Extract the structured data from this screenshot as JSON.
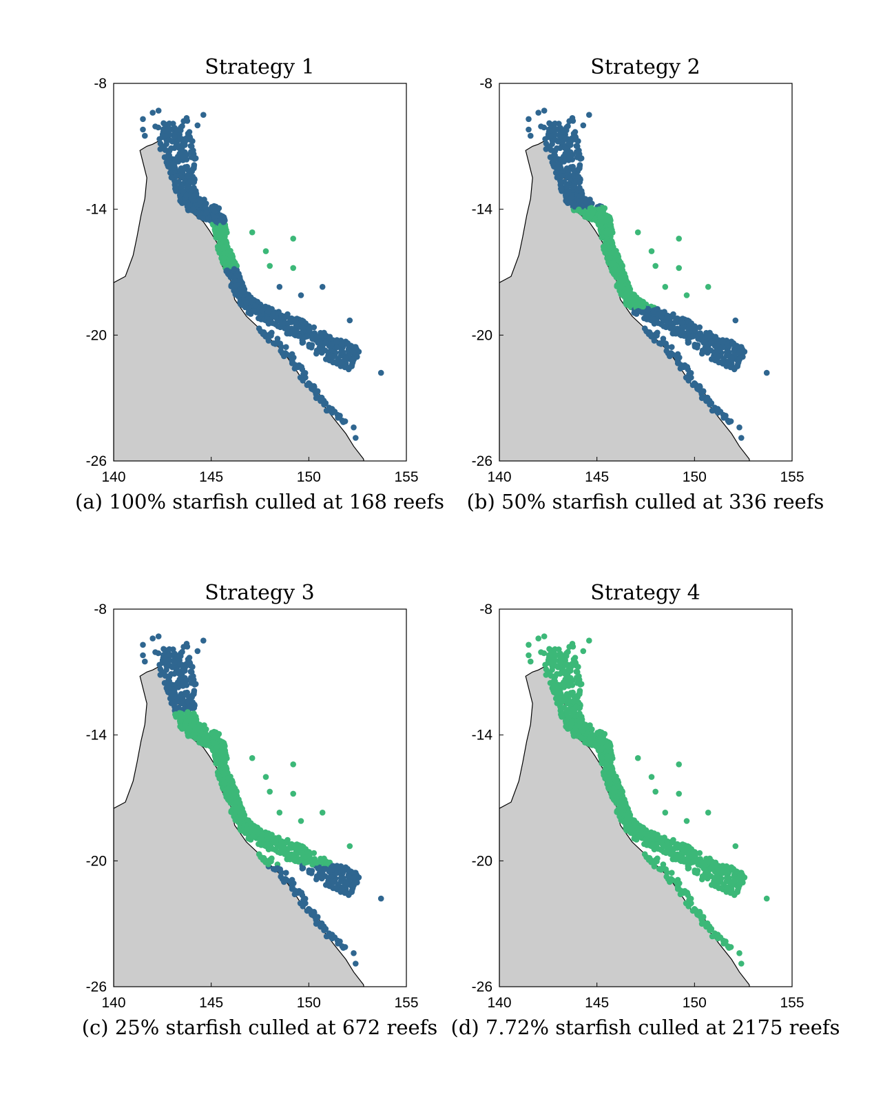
{
  "figure": {
    "colors": {
      "not_culled": "#2f6690",
      "culled": "#3cb878",
      "land": "#cccccc",
      "coast": "#000000"
    },
    "axes": {
      "xlim": [
        140,
        155
      ],
      "ylim": [
        -26,
        -8
      ],
      "xticks": [
        "140",
        "145",
        "150",
        "155"
      ],
      "yticks": [
        "-8",
        "-14",
        "-20",
        "-26"
      ]
    },
    "panels": [
      {
        "title": "Strategy 1",
        "caption": "(a) 100% starfish culled at 168 reefs",
        "culled_lat_range": [
          -14.7,
          -16.8
        ]
      },
      {
        "title": "Strategy 2",
        "caption": "(b) 50% starfish culled at 336 reefs",
        "culled_lat_range": [
          -13.9,
          -18.7
        ]
      },
      {
        "title": "Strategy 3",
        "caption": "(c) 25% starfish culled at 672 reefs",
        "culled_lat_range": [
          -12.9,
          -20.2
        ]
      },
      {
        "title": "Strategy 4",
        "caption": "(d) 7.72% starfish culled at 2175 reefs",
        "culled_lat_range": [
          -7.0,
          -27.0
        ]
      }
    ]
  }
}
